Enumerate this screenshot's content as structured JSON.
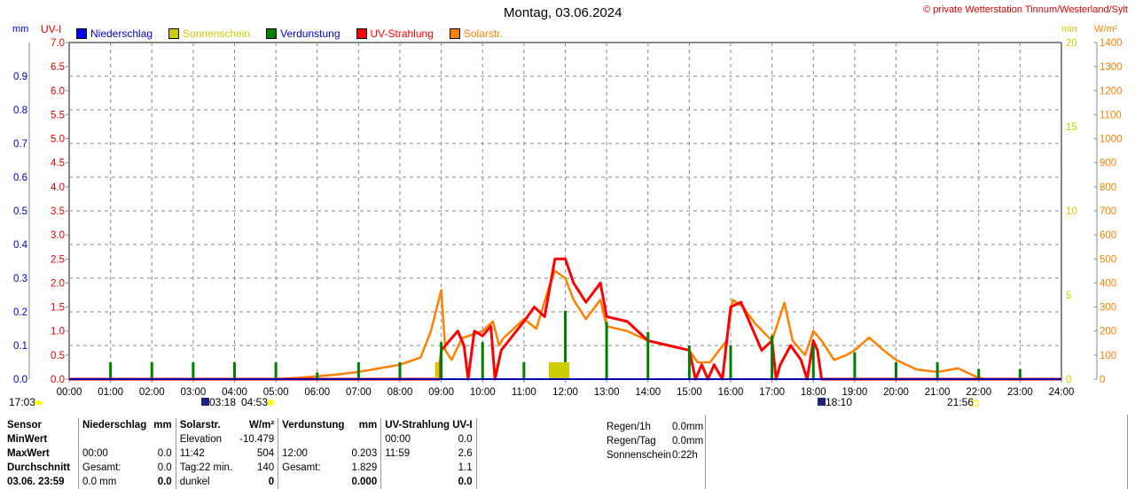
{
  "title": "Montag, 03.06.2024",
  "credit": "© private Wetterstation Tinnum/Westerland/Sylt",
  "axis_units": {
    "mm": "mm",
    "uv": "UV-I",
    "min": "min",
    "solar": "W/m²"
  },
  "legend": [
    {
      "label": "Niederschlag",
      "color": "#0000ff",
      "text_color": "#0000cc"
    },
    {
      "label": "Sonnenschein",
      "color": "#cccc00",
      "text_color": "#cccc00"
    },
    {
      "label": "Verdunstung",
      "color": "#008000",
      "text_color": "#0000cc"
    },
    {
      "label": "UV-Strahlung",
      "color": "#ff0000",
      "text_color": "#ff0000"
    },
    {
      "label": "Solarstr.",
      "color": "#ff8000",
      "text_color": "#ff8000"
    }
  ],
  "sun_markers": {
    "prev_sunset": "17:03",
    "dawn": "03:18",
    "sunrise": "04:53",
    "noon_marker": "18:10",
    "sunset": "21:56"
  },
  "chart_data": {
    "type": "line",
    "title": "Montag, 03.06.2024",
    "x_ticks": [
      "00:00",
      "01:00",
      "02:00",
      "03:00",
      "04:00",
      "05:00",
      "06:00",
      "07:00",
      "08:00",
      "09:00",
      "10:00",
      "11:00",
      "12:00",
      "13:00",
      "14:00",
      "15:00",
      "16:00",
      "17:00",
      "18:00",
      "19:00",
      "20:00",
      "21:00",
      "22:00",
      "23:00",
      "24:00"
    ],
    "xlim": [
      0,
      24
    ],
    "y_axes": {
      "mm": {
        "range": [
          0,
          1.0
        ],
        "ticks": [
          "0.0",
          "0.1",
          "0.2",
          "0.3",
          "0.4",
          "0.5",
          "0.6",
          "0.7",
          "0.8",
          "0.9"
        ]
      },
      "uv": {
        "range": [
          0,
          7
        ],
        "ticks": [
          "0.0",
          "0.5",
          "1.0",
          "1.5",
          "2.0",
          "2.5",
          "3.0",
          "3.5",
          "4.0",
          "4.5",
          "5.0",
          "5.5",
          "6.0",
          "6.5",
          "7.0"
        ]
      },
      "min": {
        "range": [
          0,
          20
        ],
        "ticks": [
          "0",
          "5",
          "10",
          "15",
          "20"
        ]
      },
      "solar": {
        "range": [
          0,
          1400
        ],
        "ticks": [
          "0",
          "100",
          "200",
          "300",
          "400",
          "500",
          "600",
          "700",
          "800",
          "900",
          "1000",
          "1100",
          "1200",
          "1300",
          "1400"
        ]
      }
    },
    "series": [
      {
        "name": "Solarstr.",
        "axis": "solar",
        "color": "#ff8000",
        "x": [
          0,
          4.9,
          5.5,
          6,
          6.5,
          7,
          7.5,
          8,
          8.5,
          8.75,
          9,
          9.1,
          9.25,
          9.5,
          10,
          10.25,
          10.4,
          10.5,
          11,
          11.3,
          11.6,
          11.75,
          12,
          12.2,
          12.5,
          12.85,
          13,
          13.5,
          14,
          14.5,
          15,
          15.2,
          15.5,
          15.9,
          16.05,
          16.3,
          16.6,
          17,
          17.3,
          17.5,
          17.8,
          18,
          18.2,
          18.5,
          18.8,
          19,
          19.35,
          19.7,
          20,
          20.5,
          21,
          21.5,
          22,
          22.2,
          24
        ],
        "y": [
          0,
          0,
          5,
          12,
          20,
          30,
          45,
          60,
          90,
          200,
          370,
          120,
          80,
          170,
          200,
          240,
          140,
          170,
          250,
          210,
          380,
          450,
          420,
          330,
          250,
          330,
          220,
          200,
          160,
          140,
          120,
          70,
          70,
          160,
          330,
          300,
          230,
          160,
          317,
          160,
          100,
          200,
          160,
          80,
          100,
          120,
          173,
          120,
          80,
          40,
          30,
          45,
          5,
          0,
          0
        ]
      },
      {
        "name": "UV-Strahlung",
        "axis": "uv",
        "color": "#ff0000",
        "x": [
          0,
          8.95,
          9,
          9.2,
          9.4,
          9.55,
          9.65,
          9.8,
          10,
          10.2,
          10.3,
          10.45,
          11,
          11.25,
          11.5,
          11.75,
          12,
          12.2,
          12.5,
          12.85,
          13,
          13.5,
          14,
          14.5,
          15,
          15.15,
          15.3,
          15.45,
          15.6,
          15.8,
          16,
          16.25,
          16.5,
          16.75,
          17,
          17.1,
          17.2,
          17.45,
          17.7,
          17.85,
          18,
          18.1,
          18.2,
          24
        ],
        "y": [
          0,
          0,
          0.6,
          0.8,
          1.0,
          0.7,
          0,
          1.0,
          0.9,
          1.1,
          0,
          0.6,
          1.2,
          1.5,
          1.3,
          2.5,
          2.5,
          2.0,
          1.6,
          2.0,
          1.3,
          1.2,
          0.8,
          0.7,
          0.6,
          0,
          0.3,
          0,
          0.3,
          0,
          1.5,
          1.6,
          1.1,
          0.6,
          0.8,
          0,
          0.3,
          0.7,
          0.4,
          0,
          0.8,
          0.6,
          0,
          0
        ]
      },
      {
        "name": "Verdunstung",
        "axis": "mm",
        "type": "bar",
        "color": "#008000",
        "x": [
          1,
          2,
          3,
          4,
          5,
          6,
          7,
          8,
          9,
          10,
          11,
          12,
          13,
          14,
          15,
          16,
          17,
          18,
          19,
          20,
          21,
          22,
          23
        ],
        "y": [
          0.05,
          0.05,
          0.05,
          0.05,
          0.05,
          0.02,
          0.05,
          0.05,
          0.11,
          0.11,
          0.05,
          0.203,
          0.17,
          0.14,
          0.1,
          0.1,
          0.13,
          0.1,
          0.08,
          0.05,
          0.05,
          0.03,
          0.03
        ]
      },
      {
        "name": "Sonnenschein",
        "axis": "min",
        "type": "bar",
        "color": "#cccc00",
        "x": [
          8.9,
          11.85
        ],
        "width_h": [
          0.1,
          0.5
        ],
        "y": [
          1,
          1
        ]
      },
      {
        "name": "Niederschlag",
        "axis": "mm",
        "type": "bar",
        "color": "#0000ff",
        "x": [],
        "y": []
      }
    ]
  },
  "table": {
    "headers": [
      "Sensor",
      "Niederschlag",
      "mm",
      "Solarstr.",
      "W/m²",
      "Verdunstung",
      "mm",
      "UV-Strahlung UV-I"
    ],
    "rows": [
      [
        "MinWert",
        "",
        "",
        "Elevation",
        "-10.479",
        "",
        "",
        "00:00",
        "0.0"
      ],
      [
        "MaxWert",
        "00:00",
        "0.0",
        "11:42",
        "504",
        "12:00",
        "0.203",
        "11:59",
        "2.6"
      ],
      [
        "Durchschnitt",
        "Gesamt:",
        "0.0",
        "Tag:22 min.",
        "140",
        "Gesamt:",
        "1.829",
        "",
        "1.1"
      ],
      [
        "03.06. 23:59",
        "0.0 mm",
        "0.0",
        "dunkel",
        "0",
        "",
        "0.000",
        "",
        "0.0"
      ]
    ]
  },
  "summary": [
    {
      "label": "Regen/1h",
      "value": "0.0mm"
    },
    {
      "label": "Regen/Tag",
      "value": "0.0mm"
    },
    {
      "label": "Sonnenschein",
      "value": "0:22h"
    }
  ]
}
